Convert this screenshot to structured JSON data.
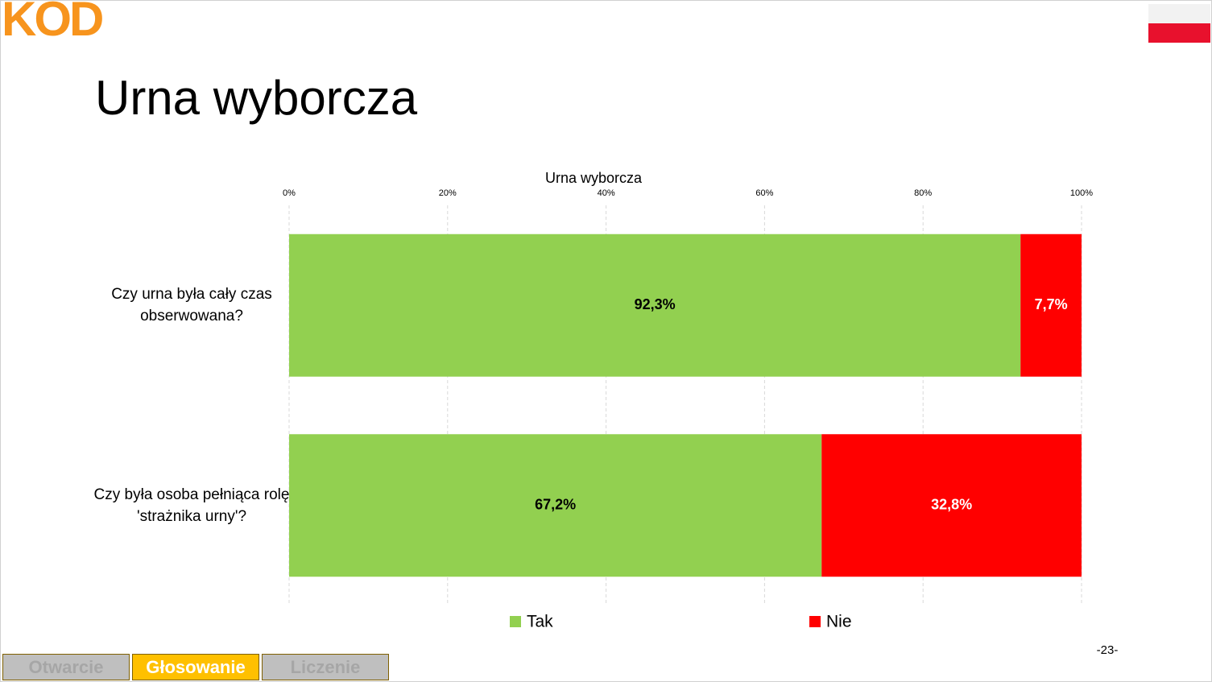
{
  "header": {
    "logo": "KOD",
    "title": "Urna wyborcza"
  },
  "chart_data": {
    "type": "bar",
    "orientation": "horizontal",
    "stacked": true,
    "title": "Urna wyborcza",
    "categories": [
      "Czy urna była cały czas obserwowana?",
      "Czy była osoba pełniąca rolę 'strażnika urny'?"
    ],
    "series": [
      {
        "name": "Tak",
        "color": "#92d050",
        "label_color": "#000000",
        "values": [
          92.3,
          67.2
        ],
        "value_labels": [
          "92,3%",
          "67,2%"
        ]
      },
      {
        "name": "Nie",
        "color": "#ff0000",
        "label_color": "#ffffff",
        "values": [
          7.7,
          32.8
        ],
        "value_labels": [
          "7,7%",
          "32,8%"
        ]
      }
    ],
    "xlim": [
      0,
      100
    ],
    "xticks": [
      {
        "value": 0,
        "label": "0%"
      },
      {
        "value": 20,
        "label": "20%"
      },
      {
        "value": 40,
        "label": "40%"
      },
      {
        "value": 60,
        "label": "60%"
      },
      {
        "value": 80,
        "label": "80%"
      },
      {
        "value": 100,
        "label": "100%"
      }
    ],
    "grid": true,
    "legend": "bottom"
  },
  "footer": {
    "tabs": [
      "Otwarcie",
      "Głosowanie",
      "Liczenie"
    ],
    "active_tab": 1,
    "page": "-23-"
  }
}
